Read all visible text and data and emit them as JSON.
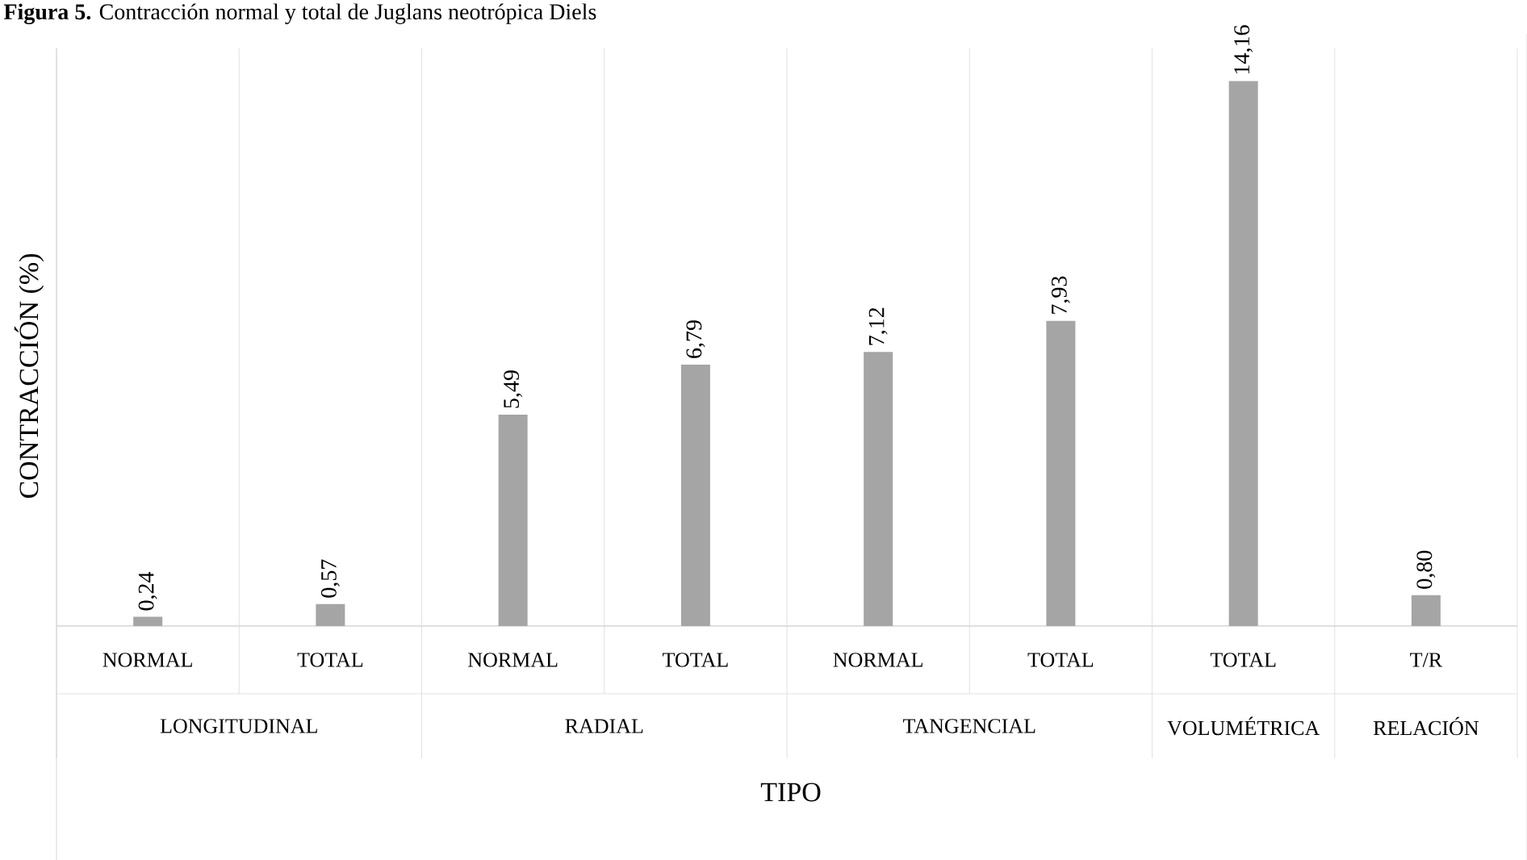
{
  "chart_data": {
    "type": "bar",
    "title": "**Figura 5.** Contracción normal y total de Juglans neotrópica Diels",
    "xlabel": "TIPO",
    "ylabel": "CONTRACCIÓN (%)",
    "categories": [
      "NORMAL",
      "TOTAL",
      "NORMAL",
      "TOTAL",
      "NORMAL",
      "TOTAL",
      "TOTAL",
      "T/R"
    ],
    "values": [
      0.24,
      0.57,
      5.49,
      6.79,
      7.12,
      7.93,
      14.16,
      0.8
    ],
    "value_labels": [
      "0,24",
      "0,57",
      "5,49",
      "6,79",
      "7,12",
      "7,93",
      "14,16",
      "0,80"
    ],
    "color": "#a5a5a5",
    "annotations": [
      "LONGITUDINAL",
      "RADIAL",
      "TANGENCIAL",
      "VOLUMÉTRICA",
      "RELACIÓN"
    ],
    "grid": "x"
  }
}
